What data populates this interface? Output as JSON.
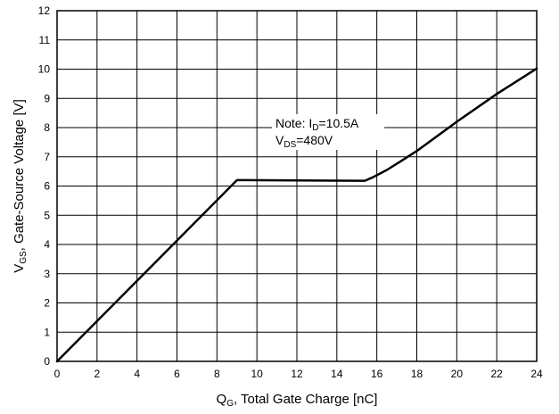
{
  "chart_data": {
    "type": "line",
    "xlabel": {
      "main": "Q",
      "sub": "G",
      "rest": ", Total Gate Charge [nC]"
    },
    "ylabel": {
      "main": "V",
      "sub": "GS",
      "rest": ", Gate-Source Voltage [V]"
    },
    "xlim": [
      0,
      24
    ],
    "ylim": [
      0,
      12
    ],
    "xticks": [
      0,
      2,
      4,
      6,
      8,
      10,
      12,
      14,
      16,
      18,
      20,
      22,
      24
    ],
    "yticks": [
      0,
      1,
      2,
      3,
      4,
      5,
      6,
      7,
      8,
      9,
      10,
      11,
      12
    ],
    "grid": true,
    "annotation": {
      "line1": {
        "prefix": "Note: I",
        "sub": "D",
        "suffix": "=10.5A"
      },
      "line2": {
        "prefix": "V",
        "sub": "DS",
        "suffix": "=480V"
      }
    },
    "series": [
      {
        "x": [
          0,
          9.0,
          9.3,
          15.4,
          15.8,
          16.5,
          17.2,
          18.0,
          20.0,
          22.0,
          24.0
        ],
        "y": [
          0,
          6.2,
          6.2,
          6.18,
          6.3,
          6.55,
          6.85,
          7.2,
          8.2,
          9.15,
          10.02
        ]
      }
    ]
  }
}
